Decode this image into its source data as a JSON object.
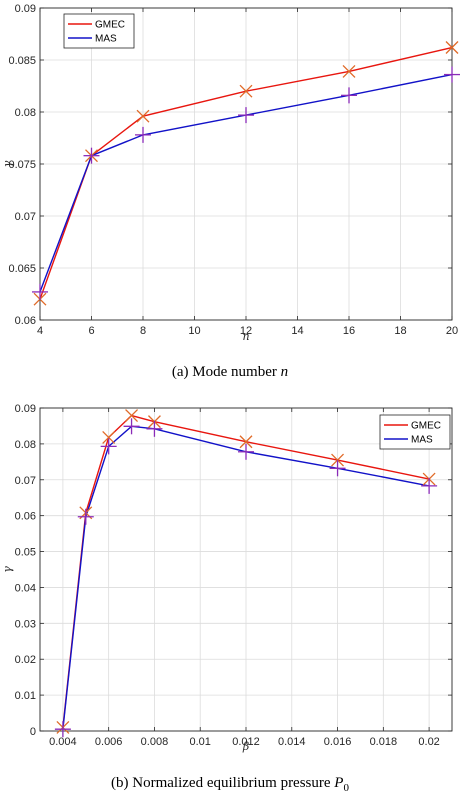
{
  "colors": {
    "gmec_line": "#e8160f",
    "mas_line": "#1212c8",
    "cross_marker": "#e06a28",
    "plus_marker": "#8a2bb8",
    "grid": "#dcdcdc",
    "axis": "#262626"
  },
  "chart_data": [
    {
      "type": "line",
      "xlabel": "n",
      "ylabel": "γ",
      "xlim": [
        4,
        20
      ],
      "ylim": [
        0.06,
        0.09
      ],
      "x_ticks": [
        "4",
        "6",
        "8",
        "10",
        "12",
        "14",
        "16",
        "18",
        "20"
      ],
      "y_ticks": [
        "0.06",
        "0.065",
        "0.07",
        "0.075",
        "0.08",
        "0.085",
        "0.09"
      ],
      "x": [
        4,
        6,
        8,
        12,
        16,
        20
      ],
      "series": [
        {
          "name": "GMEC",
          "marker": "x",
          "values": [
            0.062,
            0.0758,
            0.0796,
            0.082,
            0.0839,
            0.0862
          ]
        },
        {
          "name": "MAS",
          "marker": "+",
          "values": [
            0.0627,
            0.0758,
            0.0778,
            0.0797,
            0.0816,
            0.0836
          ]
        }
      ],
      "grid": true,
      "legend_position": "top-left",
      "caption": {
        "prefix": "(a)  Mode number ",
        "var": "n",
        "sub": ""
      }
    },
    {
      "type": "line",
      "xlabel": "β",
      "ylabel": "γ",
      "xlim": [
        0.003,
        0.021
      ],
      "ylim": [
        0,
        0.09
      ],
      "x_ticks": [
        "0.004",
        "0.006",
        "0.008",
        "0.01",
        "0.012",
        "0.014",
        "0.016",
        "0.018",
        "0.02"
      ],
      "y_ticks": [
        "0",
        "0.01",
        "0.02",
        "0.03",
        "0.04",
        "0.05",
        "0.06",
        "0.07",
        "0.08",
        "0.09"
      ],
      "x": [
        0.004,
        0.005,
        0.006,
        0.007,
        0.008,
        0.012,
        0.016,
        0.02
      ],
      "series": [
        {
          "name": "GMEC",
          "marker": "x",
          "values": [
            0.001,
            0.0608,
            0.0818,
            0.0879,
            0.0862,
            0.0806,
            0.0755,
            0.0702
          ]
        },
        {
          "name": "MAS",
          "marker": "+",
          "values": [
            0.0005,
            0.0597,
            0.0793,
            0.0849,
            0.0842,
            0.0778,
            0.0732,
            0.0683
          ]
        }
      ],
      "grid": true,
      "legend_position": "top-right",
      "caption": {
        "prefix": "(b)  Normalized equilibrium pressure ",
        "var": "P",
        "sub": "0"
      }
    }
  ]
}
